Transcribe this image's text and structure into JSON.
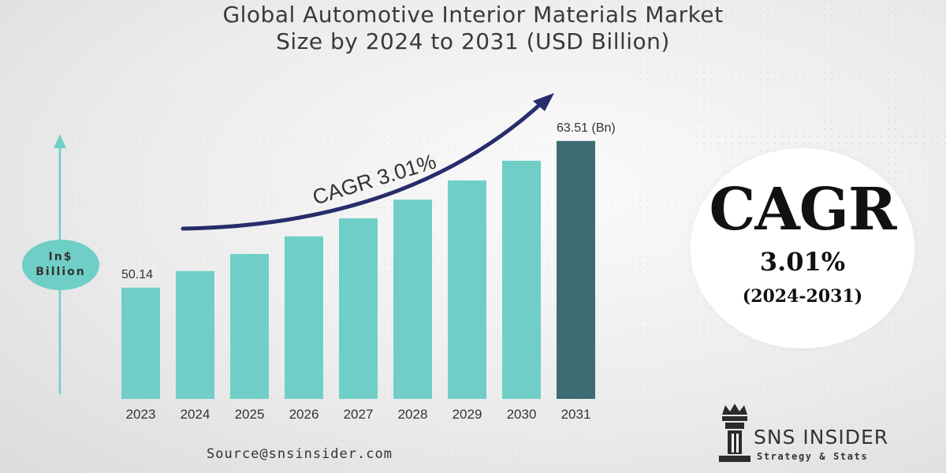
{
  "title": {
    "line1": "Global Automotive Interior Materials Market",
    "line2": "Size by 2024 to 2031 (USD Billion)"
  },
  "axis_badge": {
    "line1": "In$",
    "line2": "Billion"
  },
  "chart_data": {
    "type": "bar",
    "title": "Global Automotive Interior Materials Market Size by 2024 to 2031 (USD Billion)",
    "ylabel": "In$ Billion",
    "categories": [
      "2023",
      "2024",
      "2025",
      "2026",
      "2027",
      "2028",
      "2029",
      "2030",
      "2031"
    ],
    "values": [
      50.14,
      51.65,
      53.21,
      54.81,
      56.46,
      58.16,
      59.91,
      61.71,
      63.51
    ],
    "ylim": [
      40,
      64
    ],
    "data_labels": [
      {
        "category": "2023",
        "text": "50.14"
      },
      {
        "category": "2031",
        "text": "63.51 (Bn)"
      }
    ],
    "annotation": "CAGR 3.01%",
    "colors": {
      "bar": "#6fcfc6",
      "highlight": "#3d6b72",
      "arrow": "#272d6b"
    }
  },
  "cagr_box": {
    "label": "CAGR",
    "rate": "3.01%",
    "period": "(2024-2031)"
  },
  "source": "Source@snsinsider.com",
  "logo": {
    "name": "SNS INSIDER",
    "tagline": "Strategy & Stats"
  }
}
